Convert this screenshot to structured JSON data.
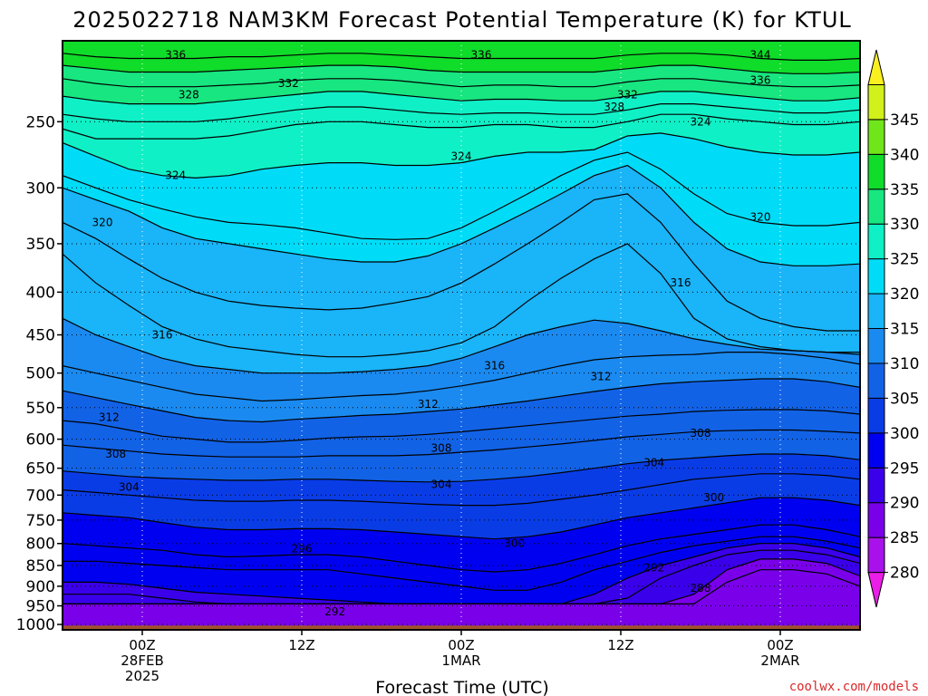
{
  "chart_data": {
    "type": "heatmap",
    "title": "2025022718 NAM3KM Forecast Potential Temperature (K) for KTUL",
    "xlabel": "Forecast Time (UTC)",
    "ylabel": "",
    "y_scale": "log",
    "y_reversed": true,
    "ylim": [
      200,
      1015
    ],
    "y_ticks": [
      250,
      300,
      350,
      400,
      450,
      500,
      550,
      600,
      650,
      700,
      750,
      800,
      850,
      900,
      950,
      1000
    ],
    "x_range_hours": [
      -6,
      54
    ],
    "x_ticks": [
      {
        "hour": 0,
        "lines": [
          "00Z",
          "28FEB",
          "2025"
        ]
      },
      {
        "hour": 12,
        "lines": [
          "12Z"
        ]
      },
      {
        "hour": 24,
        "lines": [
          "00Z",
          "1MAR"
        ]
      },
      {
        "hour": 36,
        "lines": [
          "12Z"
        ]
      },
      {
        "hour": 48,
        "lines": [
          "00Z",
          "2MAR"
        ]
      }
    ],
    "grid": true,
    "colorbar": {
      "ticks": [
        280,
        285,
        290,
        295,
        300,
        305,
        310,
        315,
        320,
        325,
        330,
        335,
        340,
        345
      ],
      "colors": [
        "#ea1ee6",
        "#a811ea",
        "#7a00ea",
        "#3a00ea",
        "#0000f0",
        "#0a3ce6",
        "#1262e6",
        "#1a8af0",
        "#1ab4f8",
        "#00dcf8",
        "#10f0c6",
        "#18e680",
        "#10dc2a",
        "#70e61a",
        "#d2f01a",
        "#faf020"
      ]
    },
    "contour_interval": 2,
    "isentropes": [
      {
        "theta": 288,
        "pressure": [
          945,
          945,
          945,
          945,
          945,
          945,
          945,
          945,
          945,
          945,
          945,
          945,
          945,
          945,
          945,
          945,
          945,
          945,
          945,
          945,
          890,
          860,
          860,
          870,
          900
        ]
      },
      {
        "theta": 290,
        "pressure": [
          945,
          945,
          945,
          945,
          945,
          945,
          945,
          945,
          945,
          945,
          945,
          945,
          945,
          945,
          945,
          945,
          945,
          945,
          945,
          920,
          860,
          835,
          835,
          845,
          875
        ]
      },
      {
        "theta": 292,
        "pressure": [
          920,
          920,
          920,
          930,
          940,
          945,
          945,
          945,
          945,
          945,
          945,
          945,
          945,
          945,
          945,
          945,
          945,
          930,
          880,
          850,
          825,
          815,
          815,
          825,
          845
        ]
      },
      {
        "theta": 294,
        "pressure": [
          890,
          890,
          895,
          905,
          915,
          920,
          925,
          930,
          935,
          940,
          945,
          945,
          945,
          945,
          945,
          945,
          920,
          880,
          850,
          830,
          810,
          800,
          800,
          810,
          830
        ]
      },
      {
        "theta": 296,
        "pressure": [
          840,
          840,
          845,
          850,
          855,
          860,
          860,
          860,
          860,
          870,
          880,
          890,
          900,
          910,
          910,
          890,
          860,
          840,
          820,
          805,
          795,
          785,
          785,
          795,
          810
        ]
      },
      {
        "theta": 298,
        "pressure": [
          800,
          805,
          810,
          815,
          825,
          830,
          828,
          825,
          825,
          830,
          840,
          850,
          860,
          865,
          860,
          845,
          825,
          805,
          790,
          780,
          770,
          760,
          760,
          770,
          785
        ]
      },
      {
        "theta": 300,
        "pressure": [
          735,
          740,
          745,
          755,
          765,
          770,
          770,
          768,
          768,
          770,
          775,
          780,
          785,
          790,
          785,
          775,
          760,
          745,
          735,
          725,
          715,
          705,
          705,
          710,
          720
        ]
      },
      {
        "theta": 302,
        "pressure": [
          690,
          695,
          700,
          705,
          710,
          712,
          712,
          710,
          710,
          712,
          715,
          718,
          720,
          720,
          716,
          708,
          700,
          690,
          680,
          670,
          665,
          660,
          660,
          663,
          670
        ]
      },
      {
        "theta": 304,
        "pressure": [
          655,
          660,
          665,
          668,
          670,
          672,
          672,
          670,
          670,
          672,
          674,
          675,
          674,
          670,
          665,
          658,
          650,
          642,
          636,
          632,
          628,
          625,
          625,
          628,
          635
        ]
      },
      {
        "theta": 306,
        "pressure": [
          610,
          615,
          620,
          625,
          628,
          630,
          630,
          630,
          628,
          628,
          628,
          626,
          622,
          618,
          613,
          608,
          602,
          596,
          592,
          588,
          586,
          585,
          585,
          587,
          590
        ]
      },
      {
        "theta": 308,
        "pressure": [
          570,
          575,
          585,
          595,
          600,
          605,
          605,
          602,
          598,
          596,
          595,
          592,
          588,
          583,
          578,
          573,
          568,
          563,
          560,
          556,
          554,
          553,
          553,
          555,
          560
        ]
      },
      {
        "theta": 310,
        "pressure": [
          525,
          535,
          545,
          555,
          565,
          570,
          572,
          568,
          565,
          562,
          560,
          556,
          552,
          546,
          540,
          533,
          526,
          520,
          515,
          512,
          510,
          508,
          508,
          512,
          520
        ]
      },
      {
        "theta": 312,
        "pressure": [
          490,
          500,
          510,
          520,
          530,
          535,
          540,
          538,
          535,
          532,
          530,
          525,
          518,
          510,
          500,
          490,
          482,
          478,
          476,
          475,
          472,
          472,
          475,
          480,
          488
        ]
      },
      {
        "theta": 314,
        "pressure": [
          430,
          450,
          465,
          480,
          490,
          495,
          500,
          500,
          500,
          498,
          495,
          490,
          480,
          465,
          450,
          440,
          432,
          436,
          445,
          455,
          462,
          468,
          470,
          472,
          475
        ]
      },
      {
        "theta": 316,
        "pressure": [
          360,
          390,
          415,
          440,
          455,
          465,
          470,
          475,
          478,
          478,
          475,
          470,
          460,
          440,
          410,
          385,
          365,
          350,
          380,
          430,
          455,
          465,
          470,
          472,
          472
        ]
      },
      {
        "theta": 318,
        "pressure": [
          330,
          345,
          365,
          385,
          400,
          410,
          415,
          418,
          420,
          418,
          412,
          405,
          390,
          370,
          350,
          330,
          310,
          305,
          330,
          370,
          410,
          430,
          440,
          445,
          445
        ]
      },
      {
        "theta": 320,
        "pressure": [
          300,
          310,
          320,
          335,
          345,
          350,
          355,
          360,
          365,
          368,
          368,
          362,
          350,
          335,
          320,
          305,
          290,
          282,
          300,
          330,
          355,
          368,
          372,
          372,
          370
        ]
      },
      {
        "theta": 322,
        "pressure": [
          290,
          300,
          310,
          318,
          325,
          330,
          332,
          335,
          340,
          345,
          346,
          345,
          335,
          320,
          305,
          290,
          278,
          272,
          285,
          305,
          322,
          330,
          333,
          333,
          330
        ]
      },
      {
        "theta": 324,
        "pressure": [
          265,
          275,
          285,
          290,
          292,
          290,
          285,
          282,
          280,
          280,
          282,
          282,
          280,
          275,
          272,
          272,
          270,
          260,
          258,
          262,
          268,
          272,
          274,
          274,
          272
        ]
      },
      {
        "theta": 326,
        "pressure": [
          255,
          262,
          262,
          262,
          262,
          260,
          256,
          252,
          250,
          250,
          252,
          254,
          254,
          252,
          252,
          254,
          254,
          250,
          245,
          245,
          248,
          250,
          252,
          252,
          250
        ]
      },
      {
        "theta": 328,
        "pressure": [
          245,
          248,
          250,
          250,
          250,
          248,
          245,
          242,
          240,
          240,
          242,
          244,
          245,
          244,
          244,
          245,
          245,
          242,
          238,
          238,
          240,
          242,
          244,
          244,
          242
        ]
      },
      {
        "theta": 330,
        "pressure": [
          233,
          236,
          238,
          238,
          238,
          236,
          234,
          232,
          230,
          230,
          232,
          234,
          236,
          235,
          235,
          236,
          236,
          233,
          230,
          230,
          232,
          234,
          236,
          236,
          234
        ]
      },
      {
        "theta": 332,
        "pressure": [
          222,
          225,
          227,
          227,
          227,
          226,
          225,
          223,
          222,
          222,
          223,
          225,
          227,
          226,
          226,
          227,
          227,
          224,
          222,
          222,
          224,
          226,
          227,
          227,
          226
        ]
      },
      {
        "theta": 334,
        "pressure": [
          214,
          216,
          218,
          218,
          218,
          217,
          216,
          215,
          214,
          214,
          215,
          217,
          218,
          218,
          218,
          218,
          218,
          216,
          214,
          214,
          216,
          218,
          219,
          219,
          218
        ]
      },
      {
        "theta": 336,
        "pressure": [
          207,
          209,
          210,
          210,
          210,
          209,
          209,
          208,
          207,
          207,
          208,
          209,
          210,
          210,
          210,
          210,
          210,
          208,
          207,
          207,
          208,
          210,
          211,
          211,
          210
        ]
      }
    ],
    "contour_labels": [
      {
        "text": "336",
        "hour": 2.5,
        "pressure": 208
      },
      {
        "text": "332",
        "hour": 11.0,
        "pressure": 225
      },
      {
        "text": "336",
        "hour": 25.5,
        "pressure": 208
      },
      {
        "text": "344",
        "hour": 46.5,
        "pressure": 208
      },
      {
        "text": "328",
        "hour": 3.5,
        "pressure": 232
      },
      {
        "text": "336",
        "hour": 46.5,
        "pressure": 223
      },
      {
        "text": "332",
        "hour": 36.5,
        "pressure": 232
      },
      {
        "text": "328",
        "hour": 35.5,
        "pressure": 240
      },
      {
        "text": "324",
        "hour": 42.0,
        "pressure": 250
      },
      {
        "text": "324",
        "hour": 24.0,
        "pressure": 275
      },
      {
        "text": "324",
        "hour": 2.5,
        "pressure": 290
      },
      {
        "text": "320",
        "hour": 46.5,
        "pressure": 325
      },
      {
        "text": "320",
        "hour": -3.0,
        "pressure": 330
      },
      {
        "text": "316",
        "hour": 40.5,
        "pressure": 390
      },
      {
        "text": "316",
        "hour": 1.5,
        "pressure": 450
      },
      {
        "text": "316",
        "hour": 26.5,
        "pressure": 490
      },
      {
        "text": "312",
        "hour": 34.5,
        "pressure": 505
      },
      {
        "text": "312",
        "hour": 21.5,
        "pressure": 545
      },
      {
        "text": "312",
        "hour": -2.5,
        "pressure": 565
      },
      {
        "text": "308",
        "hour": 42.0,
        "pressure": 590
      },
      {
        "text": "308",
        "hour": 22.5,
        "pressure": 615
      },
      {
        "text": "308",
        "hour": -2.0,
        "pressure": 625
      },
      {
        "text": "304",
        "hour": 38.5,
        "pressure": 640
      },
      {
        "text": "304",
        "hour": 22.5,
        "pressure": 680
      },
      {
        "text": "304",
        "hour": -1.0,
        "pressure": 685
      },
      {
        "text": "300",
        "hour": 43.0,
        "pressure": 705
      },
      {
        "text": "300",
        "hour": 28.0,
        "pressure": 800
      },
      {
        "text": "296",
        "hour": 12.0,
        "pressure": 812
      },
      {
        "text": "292",
        "hour": 38.5,
        "pressure": 855
      },
      {
        "text": "288",
        "hour": 42.0,
        "pressure": 905
      },
      {
        "text": "292",
        "hour": 14.5,
        "pressure": 965
      }
    ]
  },
  "credit": "coolwx.com/models"
}
